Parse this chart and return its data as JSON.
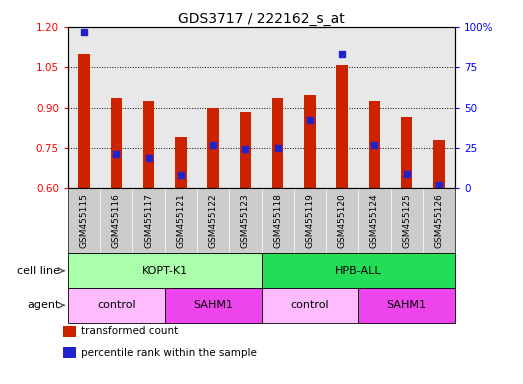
{
  "title": "GDS3717 / 222162_s_at",
  "samples": [
    "GSM455115",
    "GSM455116",
    "GSM455117",
    "GSM455121",
    "GSM455122",
    "GSM455123",
    "GSM455118",
    "GSM455119",
    "GSM455120",
    "GSM455124",
    "GSM455125",
    "GSM455126"
  ],
  "red_values": [
    1.1,
    0.935,
    0.925,
    0.79,
    0.9,
    0.885,
    0.935,
    0.945,
    1.06,
    0.925,
    0.865,
    0.78
  ],
  "blue_values_pct": [
    97,
    21,
    19,
    8,
    27,
    24,
    25,
    42,
    83,
    27,
    9,
    2
  ],
  "ylim_left": [
    0.6,
    1.2
  ],
  "ylim_right": [
    0,
    100
  ],
  "yticks_left": [
    0.6,
    0.75,
    0.9,
    1.05,
    1.2
  ],
  "yticks_right": [
    0,
    25,
    50,
    75,
    100
  ],
  "bar_bottom": 0.6,
  "bar_color": "#cc2200",
  "dot_color": "#2222cc",
  "bg_plot": "#e8e8e8",
  "bg_xtick": "#cccccc",
  "cell_line_groups": [
    {
      "label": "KOPT-K1",
      "start": 0,
      "end": 6,
      "color": "#aaffaa"
    },
    {
      "label": "HPB-ALL",
      "start": 6,
      "end": 12,
      "color": "#22dd55"
    }
  ],
  "agent_groups": [
    {
      "label": "control",
      "start": 0,
      "end": 3,
      "color": "#ffbbff"
    },
    {
      "label": "SAHM1",
      "start": 3,
      "end": 6,
      "color": "#ee44ee"
    },
    {
      "label": "control",
      "start": 6,
      "end": 9,
      "color": "#ffbbff"
    },
    {
      "label": "SAHM1",
      "start": 9,
      "end": 12,
      "color": "#ee44ee"
    }
  ],
  "legend_items": [
    {
      "label": "transformed count",
      "color": "#cc2200"
    },
    {
      "label": "percentile rank within the sample",
      "color": "#2222cc"
    }
  ],
  "bar_width": 0.35,
  "dot_size": 14
}
